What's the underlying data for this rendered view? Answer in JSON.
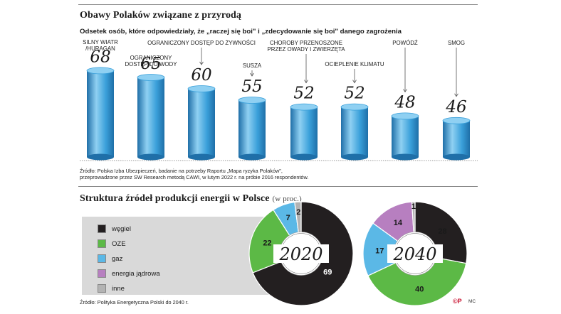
{
  "chart1": {
    "title": "Obawy Polaków związane z przyrodą",
    "subtitle": "Odsetek osób, które odpowiedziały, że „raczej się boi\" i „zdecydowanie się boi\" danego zagrożenia",
    "source_line1": "Źródło: Polska Izba Ubezpieczeń, badanie na potrzeby Raportu „Mapa ryzyka Polaków\",",
    "source_line2": "przeprowadzone przez SW Research metodą CAWI, w lutym 2022 r. na próbie 2016 respondentów."
  },
  "chart2": {
    "title": "Struktura źródeł produkcji energii w Polsce",
    "unit": "(w proc.)",
    "source": "Źródło: Polityka Energetyczna Polski do 2040 r."
  },
  "logo": "©P",
  "credit": "MC",
  "chart_data": [
    {
      "type": "bar",
      "title": "Obawy Polaków związane z przyrodą",
      "subtitle": "Odsetek osób, które odpowiedziały, że „raczej się boi\" i „zdecydowanie się boi\" danego zagrożenia",
      "categories": [
        [
          "SILNY WIATR",
          "/HURAGAN"
        ],
        [
          "OGRANICZONY",
          "DOSTĘP DO WODY"
        ],
        [
          "OGRANICZONY DOSTĘP DO ŻYWNOŚCI"
        ],
        [
          "SUSZA"
        ],
        [
          "CHOROBY PRZENOSZONE",
          "PRZEZ OWADY I ZWIERZĘTA"
        ],
        [
          "OCIEPLENIE KLIMATU"
        ],
        [
          "POWÓDŹ"
        ],
        [
          "SMOG"
        ]
      ],
      "values": [
        68,
        65,
        60,
        55,
        52,
        52,
        48,
        46
      ],
      "colors": {
        "bar_main": "#3aa0da",
        "bar_light": "#8fd0f2",
        "bar_dark": "#1f6fa8"
      }
    },
    {
      "type": "pie",
      "title": "2020",
      "labels": [
        "węgiel",
        "OZE",
        "gaz",
        "energia jądrowa",
        "inne"
      ],
      "values": [
        69,
        22,
        7,
        0,
        2
      ]
    },
    {
      "type": "pie",
      "title": "2040",
      "labels": [
        "węgiel",
        "OZE",
        "gaz",
        "energia jądrowa",
        "inne"
      ],
      "values": [
        28,
        40,
        17,
        14,
        1
      ]
    }
  ],
  "legend": [
    {
      "label": "węgiel",
      "color": "#231f20"
    },
    {
      "label": "OZE",
      "color": "#5cb946"
    },
    {
      "label": "gaz",
      "color": "#5bb8e6"
    },
    {
      "label": "energia jądrowa",
      "color": "#b77fc0"
    },
    {
      "label": "inne",
      "color": "#b3b3b3"
    }
  ]
}
